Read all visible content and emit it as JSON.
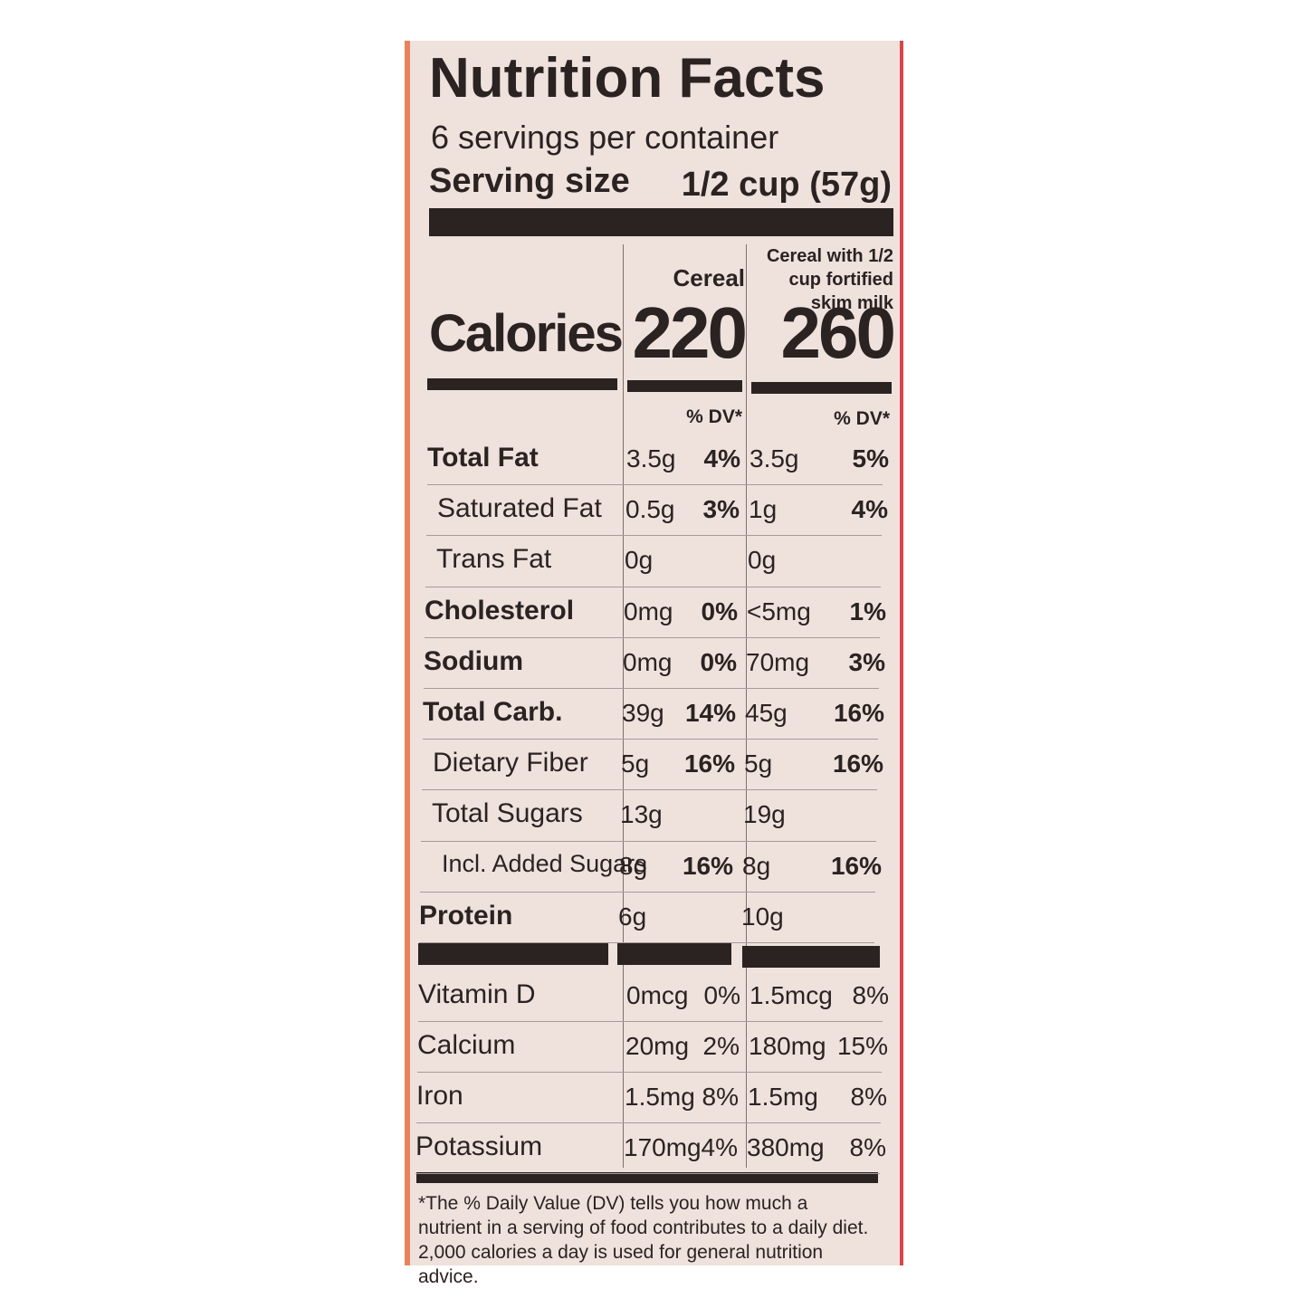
{
  "title": "Nutrition Facts",
  "servings": "6 servings per container",
  "serving_size": {
    "label": "Serving size",
    "value": "1/2 cup (57g)"
  },
  "columns": [
    "Cereal",
    "Cereal with 1/2 cup fortified skim milk"
  ],
  "calories": {
    "label": "Calories",
    "values": [
      "220",
      "260"
    ]
  },
  "dv_header": "% DV*",
  "rows": [
    {
      "label": "Total Fat",
      "level": 0,
      "cereal": [
        "3.5g",
        "4%"
      ],
      "milk": [
        "3.5g",
        "5%"
      ]
    },
    {
      "label": "Saturated Fat",
      "level": 1,
      "cereal": [
        "0.5g",
        "3%"
      ],
      "milk": [
        "1g",
        "4%"
      ]
    },
    {
      "label": "Trans Fat",
      "level": 1,
      "cereal": [
        "0g"
      ],
      "milk": [
        "0g"
      ]
    },
    {
      "label": "Cholesterol",
      "level": 0,
      "cereal": [
        "0mg",
        "0%"
      ],
      "milk": [
        "<5mg",
        "1%"
      ]
    },
    {
      "label": "Sodium",
      "level": 0,
      "cereal": [
        "0mg",
        "0%"
      ],
      "milk": [
        "70mg",
        "3%"
      ]
    },
    {
      "label": "Total Carb.",
      "level": 0,
      "cereal": [
        "39g",
        "14%"
      ],
      "milk": [
        "45g",
        "16%"
      ]
    },
    {
      "label": "Dietary Fiber",
      "level": 1,
      "cereal": [
        "5g",
        "16%"
      ],
      "milk": [
        "5g",
        "16%"
      ]
    },
    {
      "label": "Total Sugars",
      "level": 1,
      "cereal": [
        "13g"
      ],
      "milk": [
        "19g"
      ]
    },
    {
      "label": "Incl. Added Sugars",
      "level": 2,
      "cereal": [
        "8g",
        "16%"
      ],
      "milk": [
        "8g",
        "16%"
      ]
    },
    {
      "label": "Protein",
      "level": 0,
      "cereal": [
        "6g"
      ],
      "milk": [
        "10g"
      ]
    }
  ],
  "vitamins": [
    {
      "label": "Vitamin D",
      "cereal": [
        "0mcg",
        "0%"
      ],
      "milk": [
        "1.5mcg",
        "8%"
      ]
    },
    {
      "label": "Calcium",
      "cereal": [
        "20mg",
        "2%"
      ],
      "milk": [
        "180mg",
        "15%"
      ]
    },
    {
      "label": "Iron",
      "cereal": [
        "1.5mg",
        "8%"
      ],
      "milk": [
        "1.5mg",
        "8%"
      ]
    },
    {
      "label": "Potassium",
      "cereal": [
        "170mg",
        "4%"
      ],
      "milk": [
        "380mg",
        "8%"
      ]
    }
  ],
  "footnote": "*The % Daily Value (DV) tells you how much a nutrient in a serving of food contributes to a daily diet. 2,000 calories a day is used for general nutrition advice."
}
